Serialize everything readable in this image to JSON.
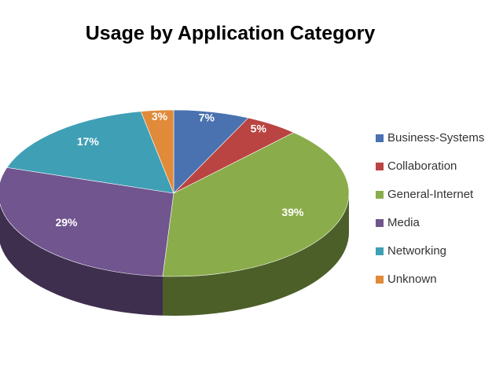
{
  "chart_data": {
    "type": "pie",
    "title": "Usage by Application Category",
    "categories": [
      "Business-Systems",
      "Collaboration",
      "General-Internet",
      "Media",
      "Networking",
      "Unknown"
    ],
    "values": [
      7,
      5,
      39,
      29,
      17,
      3
    ],
    "value_labels": [
      "7%",
      "5%",
      "39%",
      "29%",
      "17%",
      "3%"
    ],
    "colors": [
      "#4a72b0",
      "#b94442",
      "#8aac4a",
      "#70558f",
      "#3f9fb5",
      "#e08a3a"
    ],
    "legend": "right"
  }
}
